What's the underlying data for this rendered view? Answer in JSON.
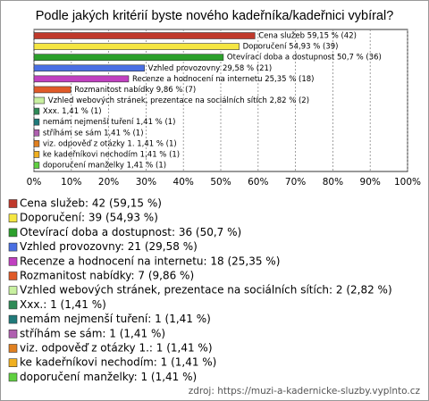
{
  "chart_data": {
    "type": "hbar",
    "title": "Podle jakých kritérií byste nového kadeřníka/kadeřnici vybíral?",
    "categories": [
      "Cena služeb",
      "Doporučení",
      "Otevírací doba a dostupnost",
      "Vzhled provozovny",
      "Recenze a hodnocení na internetu",
      "Rozmanitost nabídky",
      "Vzhled webových stránek, prezentace na sociálních sítích",
      "Xxx.",
      "nemám nejmenší tuření",
      "stříhám se sám",
      "viz. odpověď z otázky 1.",
      "ke kadeřníkovi nechodím",
      "doporučení manželky"
    ],
    "values": [
      59.15,
      54.93,
      50.7,
      29.58,
      25.35,
      9.86,
      2.82,
      1.41,
      1.41,
      1.41,
      1.41,
      1.41,
      1.41
    ],
    "value_labels": [
      "Cena služeb 59,15 % (42)",
      "Doporučení 54,93 % (39)",
      "Otevírací doba a dostupnost 50,7 % (36)",
      "Vzhled provozovny 29,58 % (21)",
      "Recenze a hodnocení na internetu 25,35 % (18)",
      "Rozmanitost nabídky 9,86 % (7)",
      "Vzhled webových stránek, prezentace na sociálních sítích 2,82 % (2)",
      "Xxx. 1,41 % (1)",
      "nemám nejmenší tuření 1,41 % (1)",
      "stříhám se sám 1,41 % (1)",
      "viz. odpověď z otázky 1. 1,41 % (1)",
      "ke kadeřníkovi nechodím 1,41 % (1)",
      "doporučení manželky 1,41 % (1)"
    ],
    "legend_labels": [
      "Cena služeb: 42 (59,15 %)",
      "Doporučení: 39 (54,93 %)",
      "Otevírací doba a dostupnost: 36 (50,7 %)",
      "Vzhled provozovny: 21 (29,58 %)",
      "Recenze a hodnocení na internetu: 18 (25,35 %)",
      "Rozmanitost nabídky: 7 (9,86 %)",
      "Vzhled webových stránek, prezentace na sociálních sítích: 2 (2,82 %)",
      "Xxx.: 1 (1,41 %)",
      "nemám nejmenší tuření: 1 (1,41 %)",
      "stříhám se sám: 1 (1,41 %)",
      "viz. odpověď z otázky 1.: 1 (1,41 %)",
      "ke kadeřníkovi nechodím: 1 (1,41 %)",
      "doporučení manželky: 1 (1,41 %)"
    ],
    "colors": [
      "#c0392b",
      "#f5e642",
      "#2ca02c",
      "#4a6fe3",
      "#c040c0",
      "#e05a28",
      "#c8f0a0",
      "#2e8b57",
      "#1f7a7a",
      "#b060b0",
      "#e08020",
      "#f0b020",
      "#60d040"
    ],
    "xlim": [
      0,
      100
    ],
    "xticks": [
      {
        "value": 0,
        "label": "0%"
      },
      {
        "value": 10,
        "label": "10%"
      },
      {
        "value": 20,
        "label": "20%"
      },
      {
        "value": 30,
        "label": "30%"
      },
      {
        "value": 40,
        "label": "40%"
      },
      {
        "value": 50,
        "label": "50%"
      },
      {
        "value": 60,
        "label": "60%"
      },
      {
        "value": 70,
        "label": "70%"
      },
      {
        "value": 80,
        "label": "80%"
      },
      {
        "value": 90,
        "label": "90%"
      },
      {
        "value": 100,
        "label": "100%"
      }
    ],
    "grid": true,
    "source": "zdroj: https://muzi-a-kadernicke-sluzby.vyplnto.cz"
  }
}
